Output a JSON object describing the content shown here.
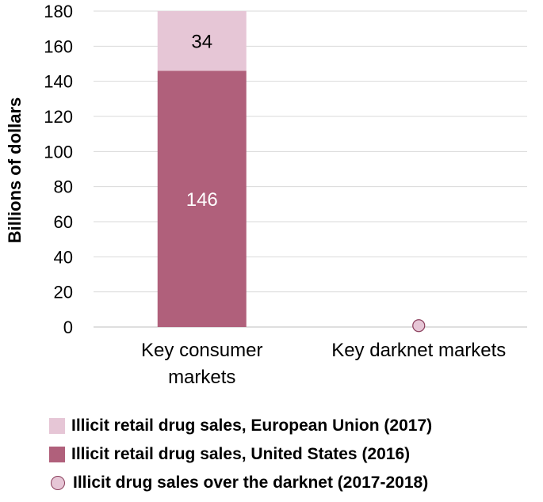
{
  "chart_data": {
    "type": "bar",
    "stacked": true,
    "categories": [
      "Key consumer markets",
      "Key darknet markets"
    ],
    "category_lines": [
      [
        "Key consumer",
        "markets"
      ],
      [
        "Key darknet markets"
      ]
    ],
    "ylabel": "Billions of dollars",
    "ylim": [
      0,
      180
    ],
    "yticks": [
      0,
      20,
      40,
      60,
      80,
      100,
      120,
      140,
      160,
      180
    ],
    "grid": true,
    "legend_position": "bottom",
    "series": [
      {
        "name": "Illicit retail drug sales, United States (2016)",
        "kind": "bar",
        "values": [
          146,
          null
        ],
        "labels": [
          "146",
          null
        ],
        "color": "#b0607b",
        "label_color": "#ffffff"
      },
      {
        "name": "Illicit retail drug sales, European Union (2017)",
        "kind": "bar",
        "values": [
          34,
          null
        ],
        "labels": [
          "34",
          null
        ],
        "color": "#e6c6d6",
        "label_color": "#000000"
      },
      {
        "name": "Illicit drug sales over the darknet (2017-2018)",
        "kind": "marker",
        "values": [
          null,
          0.8
        ],
        "color": "#e6c6d6",
        "edge_color": "#8a3d5b"
      }
    ]
  },
  "legend": [
    {
      "label": "Illicit retail drug sales, European Union (2017)",
      "color": "#e6c6d6",
      "shape": "square"
    },
    {
      "label": "Illicit retail drug sales, United States (2016)",
      "color": "#b0607b",
      "shape": "square"
    },
    {
      "label": "Illicit drug sales over the darknet (2017-2018)",
      "color": "#e6c6d6",
      "shape": "circle"
    }
  ]
}
